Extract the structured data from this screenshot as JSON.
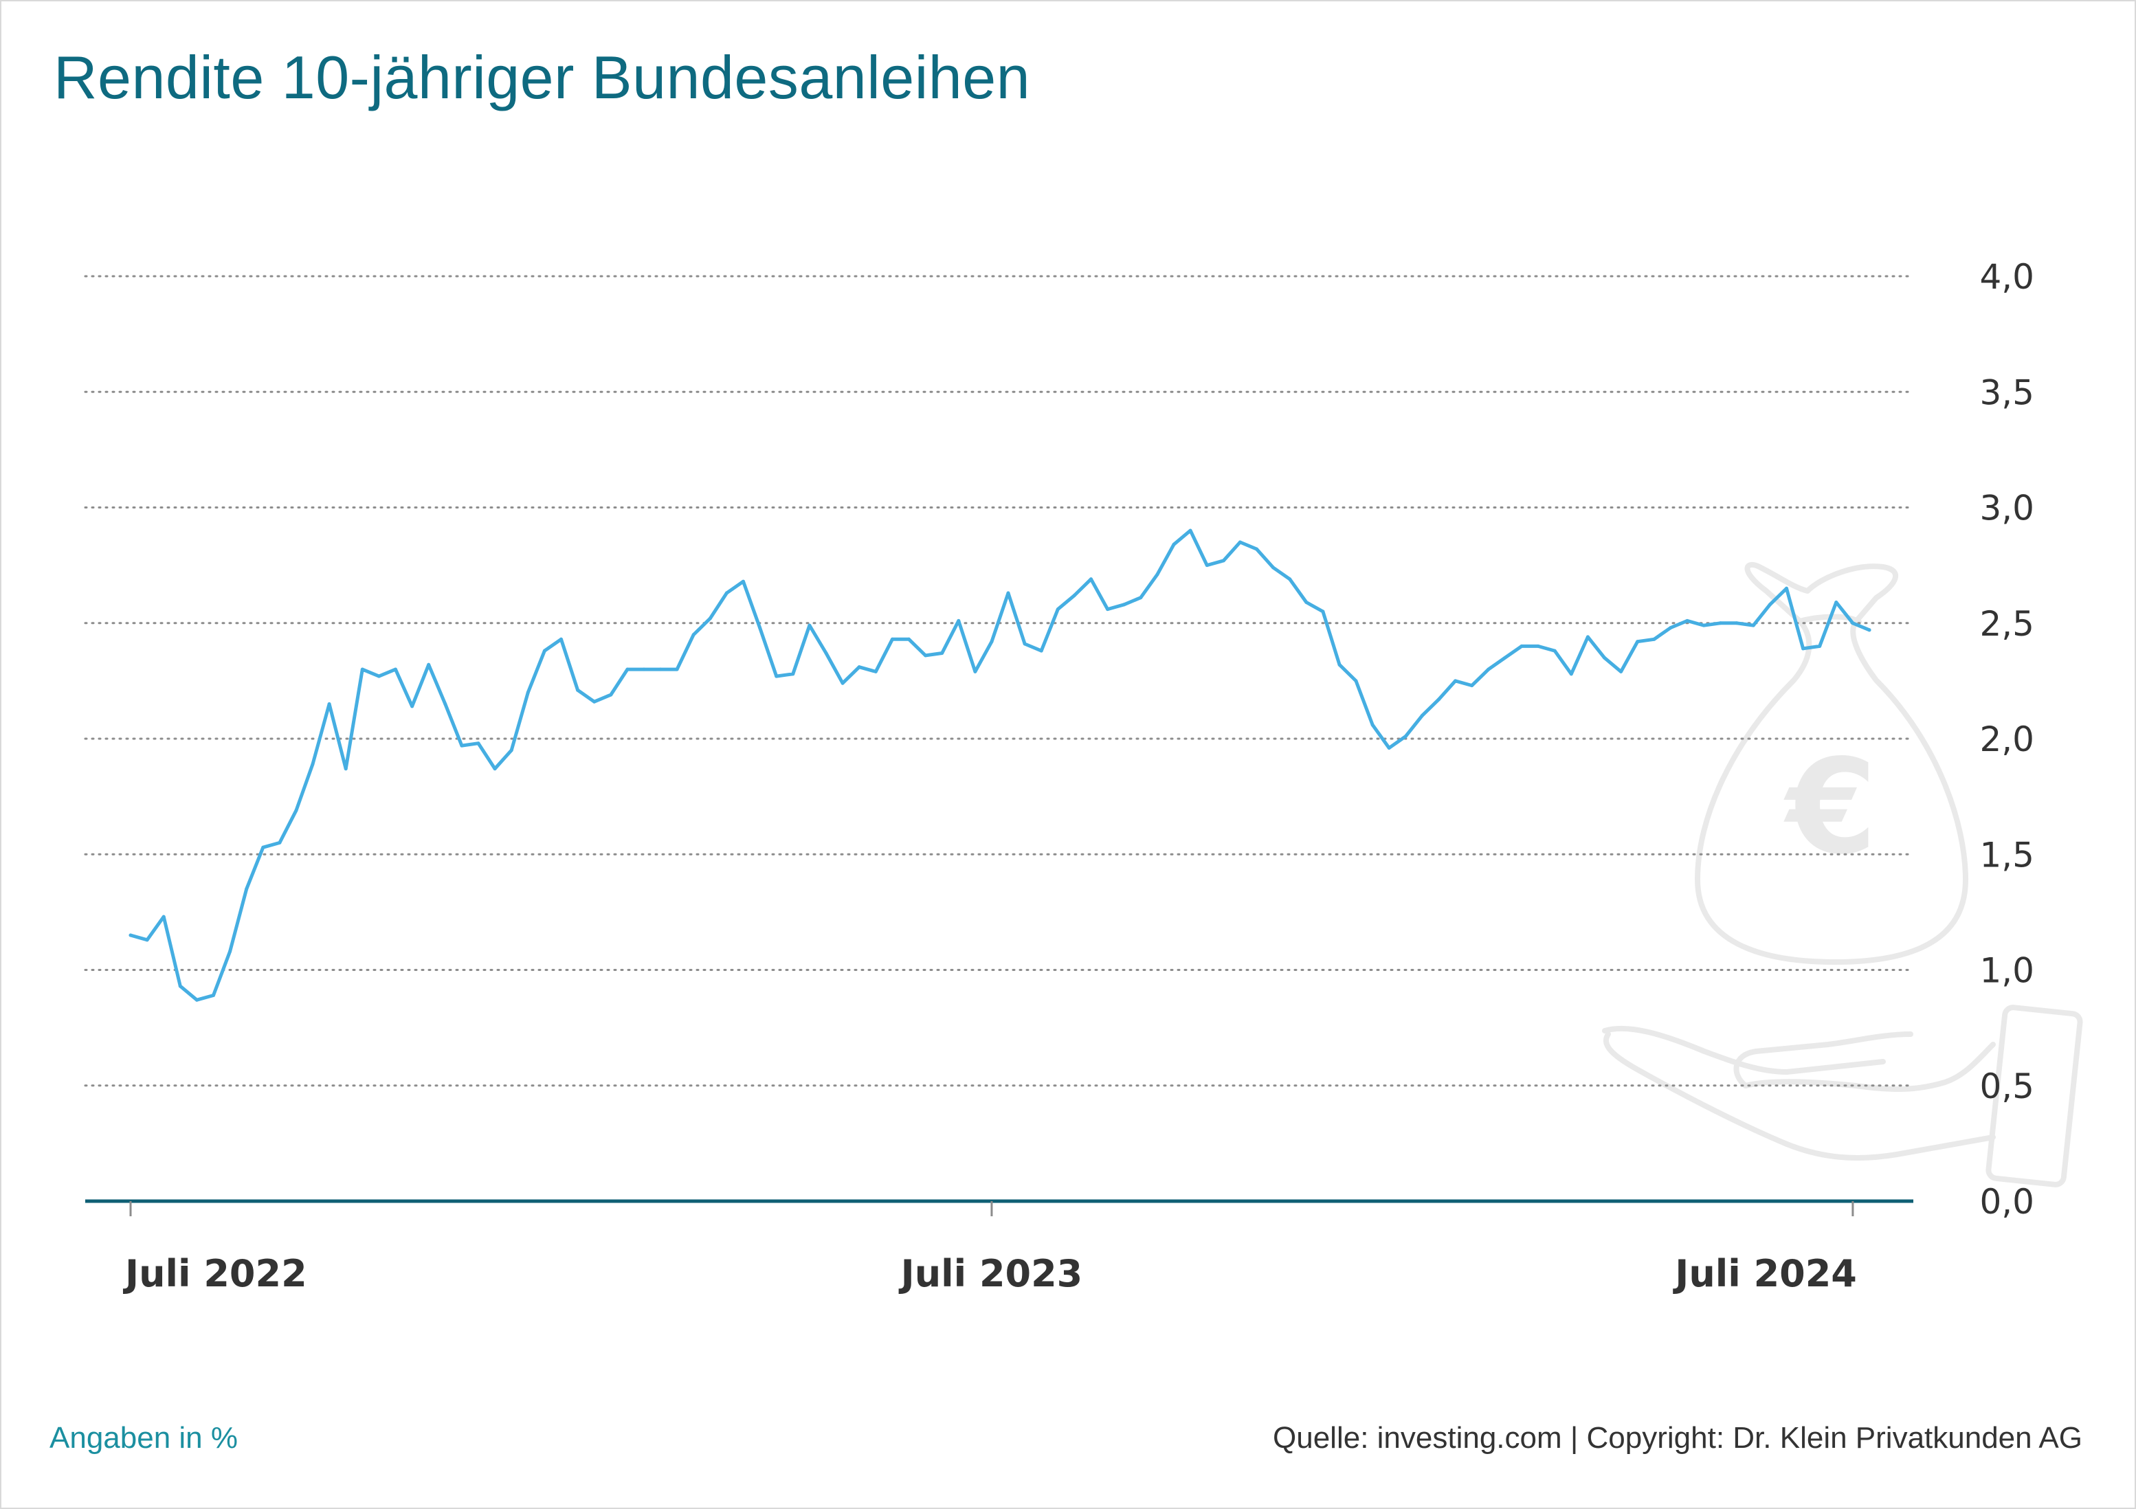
{
  "title": "Rendite 10-jähriger Bundesanleihen",
  "footer": {
    "unit_note": "Angaben in %",
    "source": "Quelle: investing.com | Copyright: Dr. Klein Privatkunden AG"
  },
  "colors": {
    "title": "#0e6a80",
    "line": "#45aee2",
    "axis": "#0e5f74",
    "grid": "#8c8c8c",
    "watermark": "#e9e9e9",
    "footer_note": "#1b8fa0"
  },
  "icons": [
    "money-bag-euro-icon",
    "open-hand-icon"
  ],
  "chart_data": {
    "type": "line",
    "title": "Rendite 10-jähriger Bundesanleihen",
    "xlabel": "",
    "ylabel": "",
    "ylim": [
      0,
      4.0
    ],
    "y_ticks": [
      0,
      0.5,
      1.0,
      1.5,
      2.0,
      2.5,
      3.0,
      3.5,
      4.0
    ],
    "y_tick_labels": [
      "0,0",
      "0,5",
      "1,0",
      "1,5",
      "2,0",
      "2,5",
      "3,0",
      "3,5",
      "4,0"
    ],
    "y_axis_position": "right",
    "grid": "horizontal dotted",
    "x_tick_labels": [
      "Juli 2022",
      "Juli 2023",
      "Juli 2024"
    ],
    "x_tick_weeks": [
      0,
      52,
      104
    ],
    "x_start": "2022-07-01",
    "x_step": "1 week",
    "series": [
      {
        "name": "",
        "values": [
          1.15,
          1.13,
          1.23,
          0.93,
          0.87,
          0.89,
          1.08,
          1.35,
          1.53,
          1.55,
          1.69,
          1.89,
          2.15,
          1.87,
          2.3,
          2.27,
          2.3,
          2.14,
          2.32,
          2.15,
          1.97,
          1.98,
          1.87,
          1.95,
          2.2,
          2.38,
          2.43,
          2.21,
          2.16,
          2.19,
          2.3,
          2.3,
          2.3,
          2.3,
          2.45,
          2.52,
          2.63,
          2.68,
          2.48,
          2.27,
          2.28,
          2.49,
          2.37,
          2.24,
          2.31,
          2.29,
          2.43,
          2.43,
          2.36,
          2.37,
          2.51,
          2.29,
          2.42,
          2.63,
          2.41,
          2.38,
          2.56,
          2.62,
          2.69,
          2.56,
          2.58,
          2.61,
          2.71,
          2.84,
          2.9,
          2.75,
          2.77,
          2.85,
          2.82,
          2.74,
          2.69,
          2.59,
          2.55,
          2.32,
          2.25,
          2.06,
          1.96,
          2.01,
          2.1,
          2.17,
          2.25,
          2.23,
          2.3,
          2.35,
          2.4,
          2.4,
          2.38,
          2.28,
          2.44,
          2.35,
          2.29,
          2.42,
          2.43,
          2.48,
          2.51,
          2.49,
          2.5,
          2.5,
          2.49,
          2.58,
          2.65,
          2.39,
          2.4,
          2.59,
          2.5,
          2.47
        ]
      }
    ]
  }
}
